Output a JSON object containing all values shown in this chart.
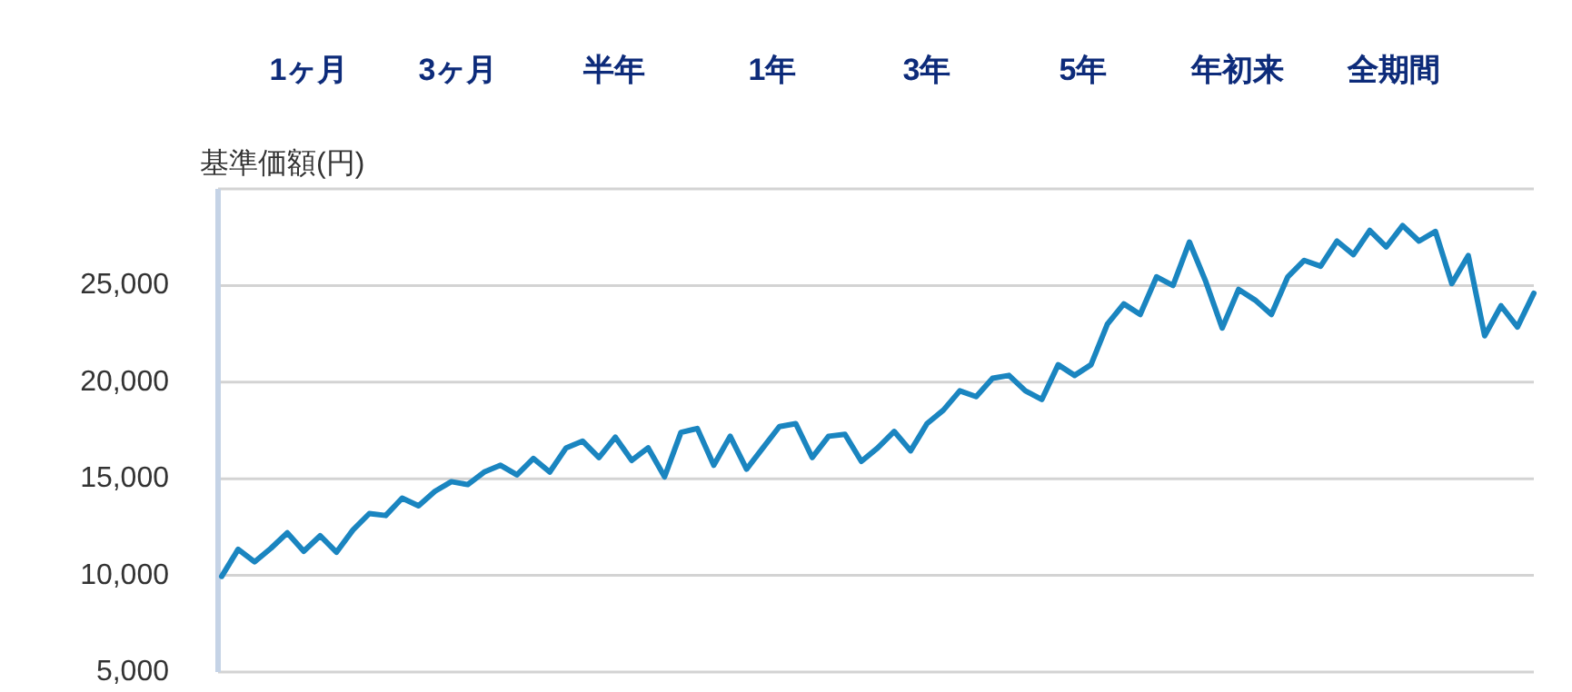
{
  "chart_data": {
    "type": "line",
    "ylabel": "基準価額(円)",
    "annotations": [
      "1ヶ月",
      "3ヶ月",
      "半年",
      "1年",
      "3年",
      "5年",
      "年初来",
      "全期間"
    ],
    "categories": [
      null,
      null,
      null,
      null,
      null,
      null,
      null,
      null,
      null,
      null,
      null,
      null,
      null,
      null,
      null,
      null,
      null,
      null,
      null,
      null,
      null,
      null,
      null,
      null,
      null,
      null,
      null,
      null,
      null,
      null,
      null,
      null,
      null,
      null,
      null,
      null,
      null,
      null,
      null,
      null,
      null,
      null,
      null,
      null,
      null,
      null,
      null,
      null,
      null,
      null,
      null,
      null,
      null,
      null,
      null,
      null,
      null,
      null,
      null,
      null,
      null,
      null,
      null,
      null,
      null,
      null,
      null,
      null,
      null,
      null,
      null,
      null,
      null,
      null,
      null,
      null,
      null,
      null,
      null,
      null,
      null
    ],
    "ylim": [
      5000,
      30000
    ],
    "yticks": [
      {
        "value": 5000,
        "label": "5,000"
      },
      {
        "value": 10000,
        "label": "10,000"
      },
      {
        "value": 15000,
        "label": "15,000"
      },
      {
        "value": 20000,
        "label": "20,000"
      },
      {
        "value": 25000,
        "label": "25,000"
      },
      {
        "value": 30000,
        "label": null
      }
    ],
    "tick_labels": "y",
    "grid": "y",
    "series": [
      {
        "color": "#1a85c0",
        "values": [
          9950,
          11350,
          10700,
          11400,
          12200,
          11250,
          12050,
          11200,
          12350,
          13200,
          13100,
          14000,
          13600,
          14350,
          14850,
          14700,
          15350,
          15700,
          15200,
          16050,
          15350,
          16600,
          16950,
          16100,
          17150,
          15950,
          16600,
          15100,
          17400,
          17600,
          15700,
          17200,
          15500,
          16600,
          17700,
          17850,
          16100,
          17200,
          17300,
          15900,
          16600,
          17450,
          16450,
          17850,
          18550,
          19550,
          19250,
          20200,
          20350,
          19550,
          19100,
          20900,
          20350,
          20900,
          23000,
          24050,
          23500,
          25450,
          25000,
          27250,
          25200,
          22800,
          24800,
          24250,
          23500,
          25450,
          26300,
          26000,
          27300,
          26600,
          27850,
          27000,
          28100,
          27300,
          27800,
          25100,
          26550,
          22400,
          23950,
          22850,
          24600
        ]
      }
    ]
  }
}
